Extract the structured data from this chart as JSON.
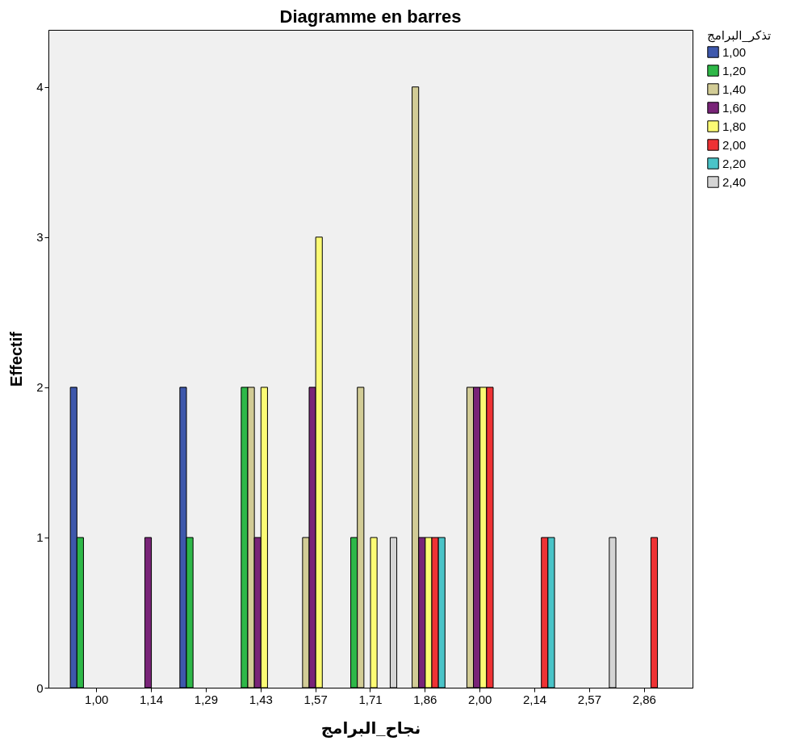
{
  "chart_data": {
    "type": "bar",
    "title": "Diagramme en barres",
    "xlabel": "نجاح_البرامج",
    "ylabel": "Effectif",
    "legend_title": "تذكر_البرامج",
    "legend": "right",
    "categories": [
      "1,00",
      "1,14",
      "1,29",
      "1,43",
      "1,57",
      "1,71",
      "1,86",
      "2,00",
      "2,14",
      "2,57",
      "2,86"
    ],
    "ylim": [
      0,
      4.38
    ],
    "yticks": [
      0,
      1,
      2,
      3,
      4
    ],
    "series": [
      {
        "name": "1,00",
        "color": "#3e58ac",
        "values": [
          2,
          null,
          2,
          null,
          null,
          null,
          null,
          null,
          null,
          null,
          null
        ]
      },
      {
        "name": "1,20",
        "color": "#2eb848",
        "values": [
          1,
          null,
          1,
          2,
          null,
          1,
          null,
          null,
          null,
          null,
          null
        ]
      },
      {
        "name": "1,40",
        "color": "#d2cc96",
        "values": [
          null,
          null,
          null,
          2,
          1,
          2,
          4,
          2,
          null,
          null,
          null
        ]
      },
      {
        "name": "1,60",
        "color": "#792478",
        "values": [
          null,
          1,
          null,
          1,
          2,
          null,
          1,
          2,
          null,
          null,
          null
        ]
      },
      {
        "name": "1,80",
        "color": "#fcfb74",
        "values": [
          null,
          null,
          null,
          2,
          3,
          1,
          1,
          2,
          null,
          null,
          null
        ]
      },
      {
        "name": "2,00",
        "color": "#ee3234",
        "values": [
          null,
          null,
          null,
          null,
          null,
          null,
          1,
          2,
          1,
          null,
          1
        ]
      },
      {
        "name": "2,20",
        "color": "#4ac4c8",
        "values": [
          null,
          null,
          null,
          null,
          null,
          null,
          1,
          null,
          1,
          null,
          null
        ]
      },
      {
        "name": "2,40",
        "color": "#d4d4d4",
        "values": [
          null,
          null,
          null,
          null,
          null,
          1,
          null,
          null,
          null,
          1,
          null
        ]
      }
    ]
  }
}
